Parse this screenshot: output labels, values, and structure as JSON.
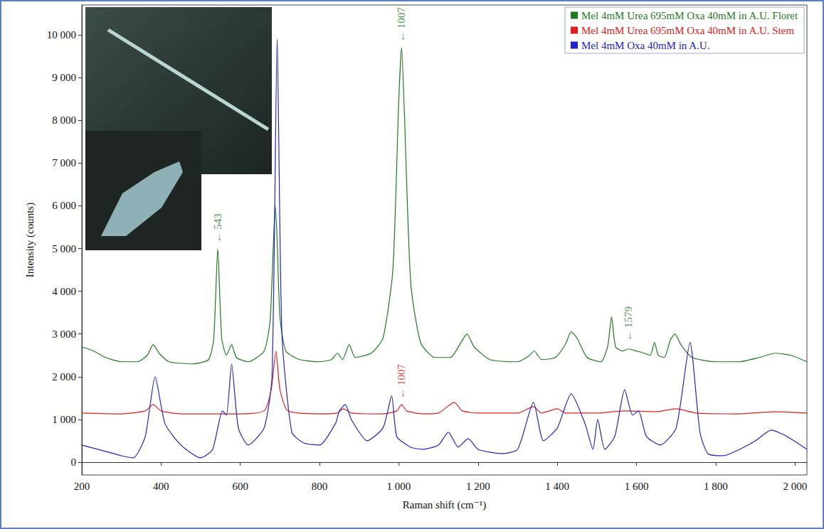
{
  "chart_data": {
    "type": "line",
    "x_label": "Raman shift (cm⁻¹)",
    "y_label": "Intensity (counts)",
    "xlim": [
      200,
      2030
    ],
    "ylim": [
      -300,
      10700
    ],
    "xticks": [
      200,
      400,
      600,
      800,
      {
        "value": 1000,
        "label": "1 000"
      },
      {
        "value": 1200,
        "label": "1 200"
      },
      {
        "value": 1400,
        "label": "1 400"
      },
      {
        "value": 1600,
        "label": "1 600"
      },
      {
        "value": 1800,
        "label": "1 800"
      },
      {
        "value": 2000,
        "label": "2 000"
      }
    ],
    "yticks": [
      0,
      {
        "value": 1000,
        "label": "1 000"
      },
      {
        "value": 2000,
        "label": "2 000"
      },
      {
        "value": 3000,
        "label": "3 000"
      },
      {
        "value": 4000,
        "label": "4 000"
      },
      {
        "value": 5000,
        "label": "5 000"
      },
      {
        "value": 6000,
        "label": "6 000"
      },
      {
        "value": 7000,
        "label": "7 000"
      },
      {
        "value": 8000,
        "label": "8 000"
      },
      {
        "value": 9000,
        "label": "9 000"
      },
      {
        "value": 10000,
        "label": "10 000"
      }
    ],
    "grid": false,
    "legend": "top-right",
    "series": [
      {
        "name": "Mel 4mM Urea 695mM Oxa 40mM in A.U. Floret",
        "color": "#1f7a1f",
        "x": [
          200,
          230,
          260,
          300,
          340,
          365,
          380,
          395,
          420,
          480,
          520,
          533,
          543,
          553,
          565,
          578,
          590,
          620,
          660,
          675,
          683,
          688,
          693,
          700,
          715,
          750,
          800,
          830,
          845,
          858,
          875,
          890,
          930,
          960,
          985,
          1000,
          1007,
          1014,
          1030,
          1055,
          1090,
          1130,
          1160,
          1172,
          1190,
          1230,
          1300,
          1330,
          1342,
          1360,
          1395,
          1420,
          1435,
          1450,
          1475,
          1510,
          1527,
          1537,
          1547,
          1565,
          1580,
          1600,
          1620,
          1635,
          1645,
          1655,
          1670,
          1685,
          1697,
          1712,
          1740,
          1800,
          1860,
          1910,
          1950,
          1990,
          2030
        ],
        "values": [
          2700,
          2600,
          2450,
          2350,
          2350,
          2500,
          2750,
          2550,
          2350,
          2300,
          2400,
          2900,
          5000,
          2900,
          2500,
          2750,
          2450,
          2350,
          2600,
          3300,
          5000,
          6000,
          5200,
          3400,
          2600,
          2400,
          2350,
          2400,
          2550,
          2400,
          2750,
          2450,
          2550,
          2900,
          4500,
          8500,
          9700,
          8200,
          4200,
          2800,
          2450,
          2450,
          2850,
          3000,
          2700,
          2400,
          2350,
          2500,
          2600,
          2400,
          2450,
          2750,
          3050,
          2900,
          2450,
          2350,
          2700,
          3400,
          2700,
          2600,
          2650,
          2600,
          2550,
          2500,
          2800,
          2500,
          2450,
          2850,
          3000,
          2750,
          2450,
          2350,
          2350,
          2450,
          2550,
          2500,
          2350
        ]
      },
      {
        "name": "Mel 4mM Urea 695mM Oxa 40mM in A.U. Stem",
        "color": "#e02020",
        "x": [
          200,
          300,
          360,
          380,
          400,
          450,
          600,
          660,
          678,
          690,
          700,
          720,
          800,
          845,
          860,
          880,
          960,
          995,
          1007,
          1020,
          1060,
          1100,
          1140,
          1160,
          1200,
          1300,
          1340,
          1360,
          1400,
          1420,
          1500,
          1570,
          1650,
          1700,
          1750,
          1850,
          1950,
          2030
        ],
        "values": [
          1150,
          1130,
          1200,
          1350,
          1200,
          1130,
          1130,
          1200,
          1700,
          2600,
          1700,
          1200,
          1130,
          1150,
          1250,
          1150,
          1130,
          1200,
          1350,
          1200,
          1130,
          1150,
          1400,
          1200,
          1150,
          1150,
          1300,
          1150,
          1250,
          1150,
          1150,
          1200,
          1180,
          1250,
          1150,
          1130,
          1180,
          1150
        ]
      },
      {
        "name": "Mel 4mM Oxa 40mM in A.U.",
        "color": "#2323c8",
        "x": [
          200,
          240,
          300,
          330,
          360,
          385,
          410,
          450,
          500,
          530,
          555,
          565,
          578,
          595,
          620,
          660,
          680,
          693,
          705,
          730,
          760,
          800,
          840,
          850,
          865,
          880,
          920,
          960,
          982,
          995,
          1030,
          1060,
          1100,
          1125,
          1150,
          1175,
          1200,
          1260,
          1300,
          1340,
          1365,
          1400,
          1435,
          1470,
          1490,
          1502,
          1520,
          1545,
          1570,
          1590,
          1605,
          1625,
          1660,
          1700,
          1735,
          1760,
          1780,
          1820,
          1860,
          1900,
          1940,
          1980,
          2030
        ],
        "values": [
          400,
          300,
          150,
          100,
          600,
          2000,
          900,
          400,
          100,
          300,
          1200,
          1100,
          2300,
          800,
          400,
          800,
          2000,
          9900,
          3000,
          700,
          450,
          400,
          900,
          1200,
          1350,
          1000,
          500,
          800,
          1550,
          600,
          350,
          300,
          400,
          700,
          350,
          550,
          300,
          200,
          300,
          1400,
          500,
          800,
          1600,
          900,
          300,
          1000,
          300,
          600,
          1700,
          1100,
          1200,
          600,
          400,
          800,
          2800,
          700,
          200,
          150,
          300,
          500,
          750,
          600,
          300
        ]
      }
    ],
    "annotations": [
      {
        "text": "← 1007",
        "x": 1007,
        "y": 9700,
        "color": "#1f7a1f"
      },
      {
        "text": "← 543",
        "x": 543,
        "y": 5000,
        "color": "#1f7a1f"
      },
      {
        "text": "← 1579",
        "x": 1579,
        "y": 2700,
        "color": "#1f7a1f"
      },
      {
        "text": "← 1007",
        "x": 1007,
        "y": 1350,
        "color": "#e02020"
      }
    ]
  }
}
